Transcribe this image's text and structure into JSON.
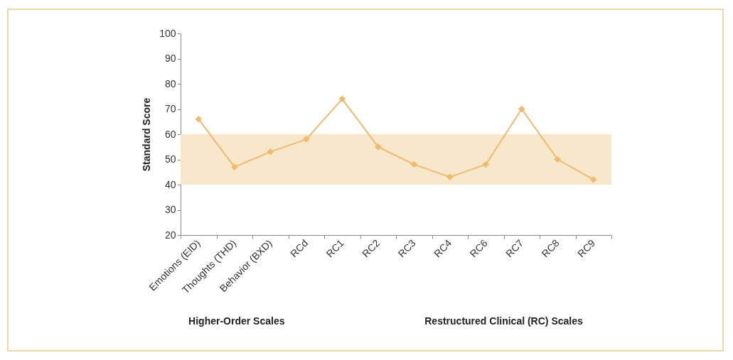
{
  "chart_data": {
    "type": "line",
    "ylabel": "Standard Score",
    "categories": [
      "Emotions (EID)",
      "Thoughts (THD)",
      "Behavior (BXD)",
      "RCd",
      "RC1",
      "RC2",
      "RC3",
      "RC4",
      "RC6",
      "RC7",
      "RC8",
      "RC9"
    ],
    "series": [
      {
        "color": "#f0b96c",
        "values": [
          66,
          47,
          53,
          58,
          74,
          55,
          48,
          43,
          48,
          70,
          50,
          42
        ]
      }
    ],
    "ylim": [
      20,
      100
    ],
    "yticks": [
      20,
      30,
      40,
      50,
      60,
      70,
      80,
      90,
      100
    ],
    "bands": [
      {
        "axis": "y",
        "from": 40,
        "to": 60,
        "color": "#f7e8cc"
      }
    ],
    "annotations": [
      "Higher-Order Scales",
      "Restructured Clinical (RC) Scales"
    ],
    "grid": false,
    "marker": "diamond",
    "line_style": "solid"
  }
}
